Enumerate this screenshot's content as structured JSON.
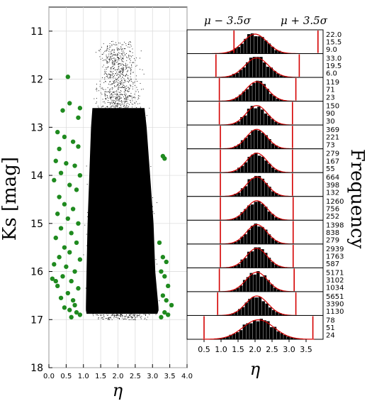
{
  "chart_data": [
    {
      "type": "scatter",
      "xlabel": "η",
      "ylabel": "K̅s [mag]",
      "xlim": [
        0.0,
        4.0
      ],
      "ylim": [
        18,
        10.5
      ],
      "y_inverted": true,
      "xticks": [
        "0.0",
        "0.5",
        "1.0",
        "1.5",
        "2.0",
        "2.5",
        "3.0",
        "3.5",
        "4.0"
      ],
      "yticks": [
        "11",
        "12",
        "13",
        "14",
        "15",
        "16",
        "17",
        "18"
      ],
      "grid": true,
      "series": [
        {
          "color": "#000000",
          "marker": "dot",
          "description_of_density": "dense cloud of stars between eta ~0.95 and ~3.3, K from ~11.2 to ~17.0, widening toward fainter magnitudes",
          "envelope": {
            "k": [
              11.2,
              12.0,
              13.0,
              14.0,
              15.0,
              16.0,
              16.8,
              17.0
            ],
            "eta_min": [
              1.3,
              1.2,
              1.1,
              1.05,
              1.0,
              0.97,
              0.95,
              1.0
            ],
            "eta_max": [
              2.7,
              2.8,
              2.95,
              3.05,
              3.15,
              3.2,
              3.3,
              3.2
            ]
          }
        },
        {
          "color": "#1f8a1f",
          "marker": "circle",
          "description": "outliers beyond mu ± 3.5 sigma",
          "points": [
            [
              0.55,
              11.95
            ],
            [
              0.6,
              12.5
            ],
            [
              0.4,
              12.65
            ],
            [
              0.85,
              12.8
            ],
            [
              0.9,
              12.6
            ],
            [
              0.25,
              13.1
            ],
            [
              0.45,
              13.2
            ],
            [
              0.7,
              13.3
            ],
            [
              0.3,
              13.45
            ],
            [
              0.85,
              13.4
            ],
            [
              0.2,
              13.7
            ],
            [
              0.5,
              13.75
            ],
            [
              0.75,
              13.8
            ],
            [
              0.35,
              13.95
            ],
            [
              0.9,
              14.0
            ],
            [
              0.15,
              14.1
            ],
            [
              0.6,
              14.2
            ],
            [
              0.8,
              14.3
            ],
            [
              0.3,
              14.45
            ],
            [
              0.45,
              14.6
            ],
            [
              0.7,
              14.7
            ],
            [
              0.25,
              14.8
            ],
            [
              0.55,
              14.9
            ],
            [
              0.85,
              15.0
            ],
            [
              0.35,
              15.1
            ],
            [
              0.65,
              15.2
            ],
            [
              0.2,
              15.3
            ],
            [
              0.8,
              15.4
            ],
            [
              0.45,
              15.5
            ],
            [
              0.6,
              15.6
            ],
            [
              0.3,
              15.7
            ],
            [
              0.9,
              15.75
            ],
            [
              0.15,
              15.85
            ],
            [
              0.5,
              15.9
            ],
            [
              0.75,
              16.0
            ],
            [
              0.4,
              16.1
            ],
            [
              0.65,
              16.2
            ],
            [
              0.25,
              16.3
            ],
            [
              0.85,
              16.35
            ],
            [
              0.55,
              16.45
            ],
            [
              0.35,
              16.55
            ],
            [
              0.7,
              16.6
            ],
            [
              0.6,
              16.8
            ],
            [
              0.8,
              16.85
            ],
            [
              0.65,
              16.95
            ],
            [
              0.9,
              16.9
            ],
            [
              0.45,
              16.75
            ],
            [
              0.75,
              16.7
            ],
            [
              0.2,
              16.2
            ],
            [
              0.1,
              16.15
            ],
            [
              3.3,
              13.6
            ],
            [
              3.35,
              13.65
            ],
            [
              3.2,
              15.4
            ],
            [
              3.3,
              15.7
            ],
            [
              3.4,
              15.8
            ],
            [
              3.25,
              16.0
            ],
            [
              3.35,
              16.1
            ],
            [
              3.45,
              16.3
            ],
            [
              3.3,
              16.5
            ],
            [
              3.4,
              16.6
            ],
            [
              3.55,
              16.7
            ],
            [
              3.35,
              16.85
            ],
            [
              3.45,
              16.9
            ],
            [
              3.25,
              16.95
            ]
          ]
        }
      ]
    },
    {
      "type": "histogram-stack",
      "xlabel": "η",
      "ylabel": "Frequency",
      "xlim": [
        0.0,
        4.0
      ],
      "xticks": [
        "0.5",
        "1.0",
        "1.5",
        "2.0",
        "2.5",
        "3.0",
        "3.5"
      ],
      "top_annotations": {
        "left": "μ − 3.5σ",
        "right": "μ + 3.5σ"
      },
      "panels": [
        {
          "mu": 2.0,
          "sigma_left": 1.38,
          "sigma_right": 3.85,
          "labels": [
            "22.0",
            "15.5",
            "9.0"
          ],
          "peak": 22.0
        },
        {
          "mu": 2.05,
          "sigma_left": 0.85,
          "sigma_right": 3.3,
          "labels": [
            "33.0",
            "19.5",
            "6.0"
          ],
          "peak": 33.0
        },
        {
          "mu": 2.05,
          "sigma_left": 0.95,
          "sigma_right": 3.2,
          "labels": [
            "119",
            "71",
            "23"
          ],
          "peak": 119
        },
        {
          "mu": 2.05,
          "sigma_left": 0.95,
          "sigma_right": 3.1,
          "labels": [
            "150",
            "90",
            "30"
          ],
          "peak": 150
        },
        {
          "mu": 2.05,
          "sigma_left": 0.98,
          "sigma_right": 3.1,
          "labels": [
            "369",
            "221",
            "73"
          ],
          "peak": 369
        },
        {
          "mu": 2.05,
          "sigma_left": 0.98,
          "sigma_right": 3.1,
          "labels": [
            "279",
            "167",
            "55"
          ],
          "peak": 279
        },
        {
          "mu": 2.05,
          "sigma_left": 0.98,
          "sigma_right": 3.1,
          "labels": [
            "664",
            "398",
            "132"
          ],
          "peak": 664
        },
        {
          "mu": 2.05,
          "sigma_left": 0.98,
          "sigma_right": 3.12,
          "labels": [
            "1260",
            "756",
            "252"
          ],
          "peak": 1260
        },
        {
          "mu": 2.05,
          "sigma_left": 0.98,
          "sigma_right": 3.12,
          "labels": [
            "1398",
            "838",
            "279"
          ],
          "peak": 1398
        },
        {
          "mu": 2.05,
          "sigma_left": 0.98,
          "sigma_right": 3.12,
          "labels": [
            "2939",
            "1763",
            "587"
          ],
          "peak": 2939
        },
        {
          "mu": 2.05,
          "sigma_left": 0.95,
          "sigma_right": 3.15,
          "labels": [
            "5171",
            "3102",
            "1034"
          ],
          "peak": 5171
        },
        {
          "mu": 2.05,
          "sigma_left": 0.9,
          "sigma_right": 3.2,
          "labels": [
            "5651",
            "3390",
            "1130"
          ],
          "peak": 5651
        },
        {
          "mu": 2.1,
          "sigma_left": 0.5,
          "sigma_right": 3.7,
          "labels": [
            "78",
            "51",
            "24"
          ],
          "peak": 78
        }
      ]
    }
  ]
}
